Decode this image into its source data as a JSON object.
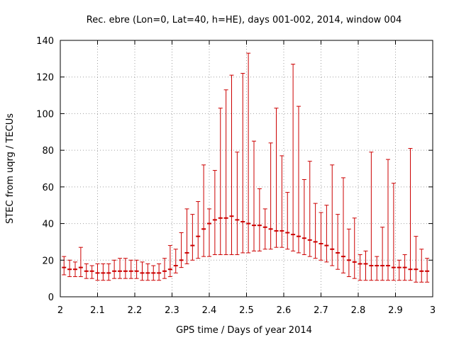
{
  "chart_data": {
    "type": "scatter",
    "style": "error-bars",
    "title": "Rec. ebre (Lon=0, Lat=40, h=HE), days 001-002, 2014, window 004",
    "xlabel": "GPS time / Days of year 2014",
    "ylabel": "STEC from uqrg / TECUs",
    "xlim": [
      2,
      3
    ],
    "ylim": [
      0,
      140
    ],
    "xticks": [
      "2",
      "2.1",
      "2.2",
      "2.3",
      "2.4",
      "2.5",
      "2.6",
      "2.7",
      "2.8",
      "2.9",
      "3"
    ],
    "yticks": [
      "0",
      "20",
      "40",
      "60",
      "80",
      "100",
      "120",
      "140"
    ],
    "grid": true,
    "series_color": "#cc0000",
    "series": [
      {
        "name": "STEC",
        "x": [
          2.01,
          2.025,
          2.04,
          2.055,
          2.07,
          2.085,
          2.1,
          2.115,
          2.13,
          2.145,
          2.16,
          2.175,
          2.19,
          2.205,
          2.22,
          2.235,
          2.25,
          2.265,
          2.28,
          2.295,
          2.31,
          2.325,
          2.34,
          2.355,
          2.37,
          2.385,
          2.4,
          2.415,
          2.43,
          2.445,
          2.46,
          2.475,
          2.49,
          2.505,
          2.52,
          2.535,
          2.55,
          2.565,
          2.58,
          2.595,
          2.61,
          2.625,
          2.64,
          2.655,
          2.67,
          2.685,
          2.7,
          2.715,
          2.73,
          2.745,
          2.76,
          2.775,
          2.79,
          2.805,
          2.82,
          2.835,
          2.85,
          2.865,
          2.88,
          2.895,
          2.91,
          2.925,
          2.94,
          2.955,
          2.97,
          2.985
        ],
        "y": [
          16,
          15,
          15,
          16,
          14,
          14,
          13,
          13,
          13,
          14,
          14,
          14,
          14,
          14,
          13,
          13,
          13,
          13,
          14,
          15,
          17,
          20,
          24,
          28,
          33,
          37,
          40,
          42,
          43,
          43,
          44,
          42,
          41,
          40,
          39,
          39,
          38,
          37,
          36,
          36,
          35,
          34,
          33,
          32,
          31,
          30,
          29,
          28,
          26,
          24,
          22,
          20,
          19,
          18,
          18,
          17,
          17,
          17,
          17,
          16,
          16,
          16,
          15,
          15,
          14,
          14
        ],
        "ylow": [
          12,
          11,
          11,
          11,
          10,
          10,
          9,
          9,
          9,
          10,
          10,
          10,
          10,
          10,
          9,
          9,
          9,
          9,
          10,
          11,
          13,
          16,
          18,
          20,
          21,
          22,
          22,
          23,
          23,
          23,
          23,
          23,
          24,
          24,
          25,
          25,
          26,
          26,
          27,
          27,
          26,
          25,
          24,
          23,
          22,
          21,
          20,
          19,
          17,
          15,
          13,
          11,
          10,
          9,
          9,
          9,
          9,
          9,
          9,
          9,
          9,
          9,
          9,
          8,
          8,
          8
        ],
        "yhigh": [
          22,
          20,
          19,
          27,
          18,
          17,
          18,
          18,
          18,
          20,
          21,
          21,
          20,
          20,
          19,
          18,
          17,
          18,
          21,
          28,
          26,
          35,
          48,
          45,
          52,
          72,
          48,
          69,
          103,
          113,
          121,
          79,
          122,
          133,
          85,
          59,
          48,
          84,
          103,
          77,
          57,
          127,
          104,
          64,
          74,
          51,
          46,
          50,
          72,
          45,
          65,
          37,
          43,
          23,
          25,
          79,
          22,
          38,
          75,
          62,
          20,
          23,
          81,
          33,
          26,
          21
        ]
      }
    ]
  }
}
